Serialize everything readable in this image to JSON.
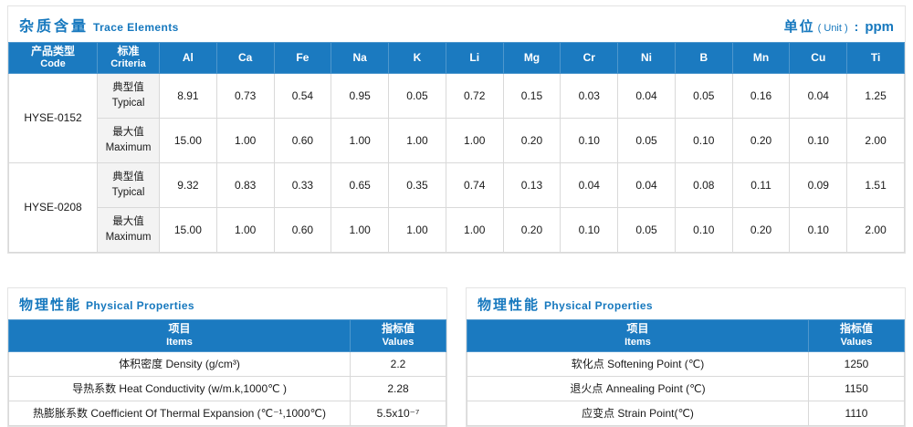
{
  "colors": {
    "header_blue": "#1b7ac0",
    "title_blue": "#1678be",
    "criteria_cell_bg": "#f3f3f3",
    "border_gray": "#d9d9d9"
  },
  "unit": {
    "label_zh": "单位",
    "label_en": "( Unit )",
    "separator": ":",
    "value": "ppm"
  },
  "trace_table": {
    "title_zh": "杂质含量",
    "title_en": "Trace Elements",
    "code_header_zh": "产品类型",
    "code_header_en": "Code",
    "criteria_header_zh": "标准",
    "criteria_header_en": "Criteria",
    "element_columns": [
      "Al",
      "Ca",
      "Fe",
      "Na",
      "K",
      "Li",
      "Mg",
      "Cr",
      "Ni",
      "B",
      "Mn",
      "Cu",
      "Ti"
    ],
    "products": [
      {
        "code": "HYSE-0152",
        "rows": [
          {
            "label_zh": "典型值",
            "label_en": "Typical",
            "values": [
              "8.91",
              "0.73",
              "0.54",
              "0.95",
              "0.05",
              "0.72",
              "0.15",
              "0.03",
              "0.04",
              "0.05",
              "0.16",
              "0.04",
              "1.25"
            ]
          },
          {
            "label_zh": "最大值",
            "label_en": "Maximum",
            "values": [
              "15.00",
              "1.00",
              "0.60",
              "1.00",
              "1.00",
              "1.00",
              "0.20",
              "0.10",
              "0.05",
              "0.10",
              "0.20",
              "0.10",
              "2.00"
            ]
          }
        ]
      },
      {
        "code": "HYSE-0208",
        "rows": [
          {
            "label_zh": "典型值",
            "label_en": "Typical",
            "values": [
              "9.32",
              "0.83",
              "0.33",
              "0.65",
              "0.35",
              "0.74",
              "0.13",
              "0.04",
              "0.04",
              "0.08",
              "0.11",
              "0.09",
              "1.51"
            ]
          },
          {
            "label_zh": "最大值",
            "label_en": "Maximum",
            "values": [
              "15.00",
              "1.00",
              "0.60",
              "1.00",
              "1.00",
              "1.00",
              "0.20",
              "0.10",
              "0.05",
              "0.10",
              "0.20",
              "0.10",
              "2.00"
            ]
          }
        ]
      }
    ]
  },
  "physical_left": {
    "title_zh": "物理性能",
    "title_en": "Physical Properties",
    "header_items_zh": "项目",
    "header_items_en": "Items",
    "header_values_zh": "指标值",
    "header_values_en": "Values",
    "rows": [
      {
        "item": "体积密度 Density (g/cm³)",
        "value": "2.2"
      },
      {
        "item": "导热系数 Heat Conductivity (w/m.k,1000℃ )",
        "value": "2.28"
      },
      {
        "item": "热膨胀系数 Coefficient Of Thermal Expansion (℃⁻¹,1000℃)",
        "value": "5.5x10⁻⁷"
      }
    ]
  },
  "physical_right": {
    "title_zh": "物理性能",
    "title_en": "Physical Properties",
    "header_items_zh": "项目",
    "header_items_en": "Items",
    "header_values_zh": "指标值",
    "header_values_en": "Values",
    "rows": [
      {
        "item": "软化点 Softening Point (℃)",
        "value": "1250"
      },
      {
        "item": "退火点 Annealing Point (℃)",
        "value": "1150"
      },
      {
        "item": "应变点 Strain Point(℃)",
        "value": "1110"
      }
    ]
  }
}
